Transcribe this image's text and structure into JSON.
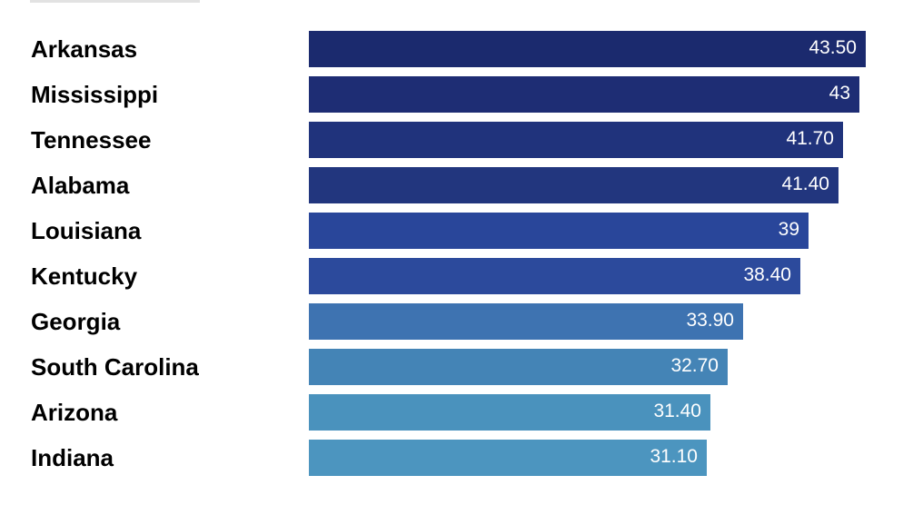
{
  "chart_data": {
    "type": "bar",
    "orientation": "horizontal",
    "categories": [
      "Arkansas",
      "Mississippi",
      "Tennessee",
      "Alabama",
      "Louisiana",
      "Kentucky",
      "Georgia",
      "South Carolina",
      "Arizona",
      "Indiana"
    ],
    "values": [
      43.5,
      43,
      41.7,
      41.4,
      39,
      38.4,
      33.9,
      32.7,
      31.4,
      31.1
    ],
    "value_labels": [
      "43.50",
      "43",
      "41.70",
      "41.40",
      "39",
      "38.40",
      "33.90",
      "32.70",
      "31.40",
      "31.10"
    ],
    "bar_colors": [
      "#1b2a6e",
      "#1e2d74",
      "#20337c",
      "#22367e",
      "#29469a",
      "#2c4a9c",
      "#3e73b1",
      "#4484b6",
      "#4a92bd",
      "#4c95bf"
    ],
    "title": "",
    "xlabel": "",
    "ylabel": "",
    "xlim": [
      0,
      43.5
    ],
    "grid": false,
    "legend": "none"
  }
}
